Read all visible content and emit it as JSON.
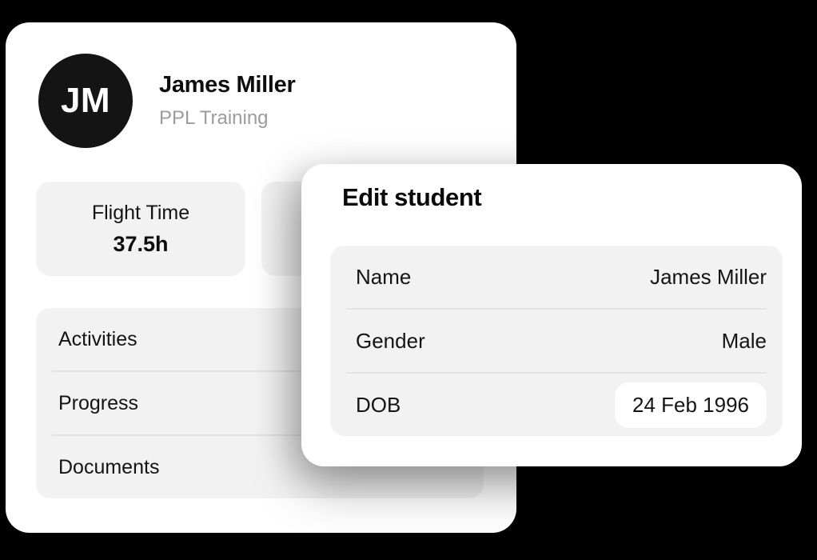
{
  "profile_card": {
    "avatar_initials": "JM",
    "name": "James Miller",
    "subtitle": "PPL Training",
    "stats": [
      {
        "label": "Flight Time",
        "value": "37.5h"
      }
    ],
    "menu_items": [
      "Activities",
      "Progress",
      "Documents"
    ]
  },
  "edit_modal": {
    "title": "Edit student",
    "fields": [
      {
        "label": "Name",
        "value": "James Miller",
        "highlighted": false
      },
      {
        "label": "Gender",
        "value": "Male",
        "highlighted": false
      },
      {
        "label": "DOB",
        "value": "24 Feb 1996",
        "highlighted": true
      }
    ]
  },
  "colors": {
    "background": "#000000",
    "card": "#ffffff",
    "panel": "#f2f2f2",
    "divider": "#e2e2e2",
    "text_primary": "#141414",
    "text_secondary": "#9c9c9c",
    "avatar_background": "#141414",
    "highlight_pill": "#ffffff"
  }
}
